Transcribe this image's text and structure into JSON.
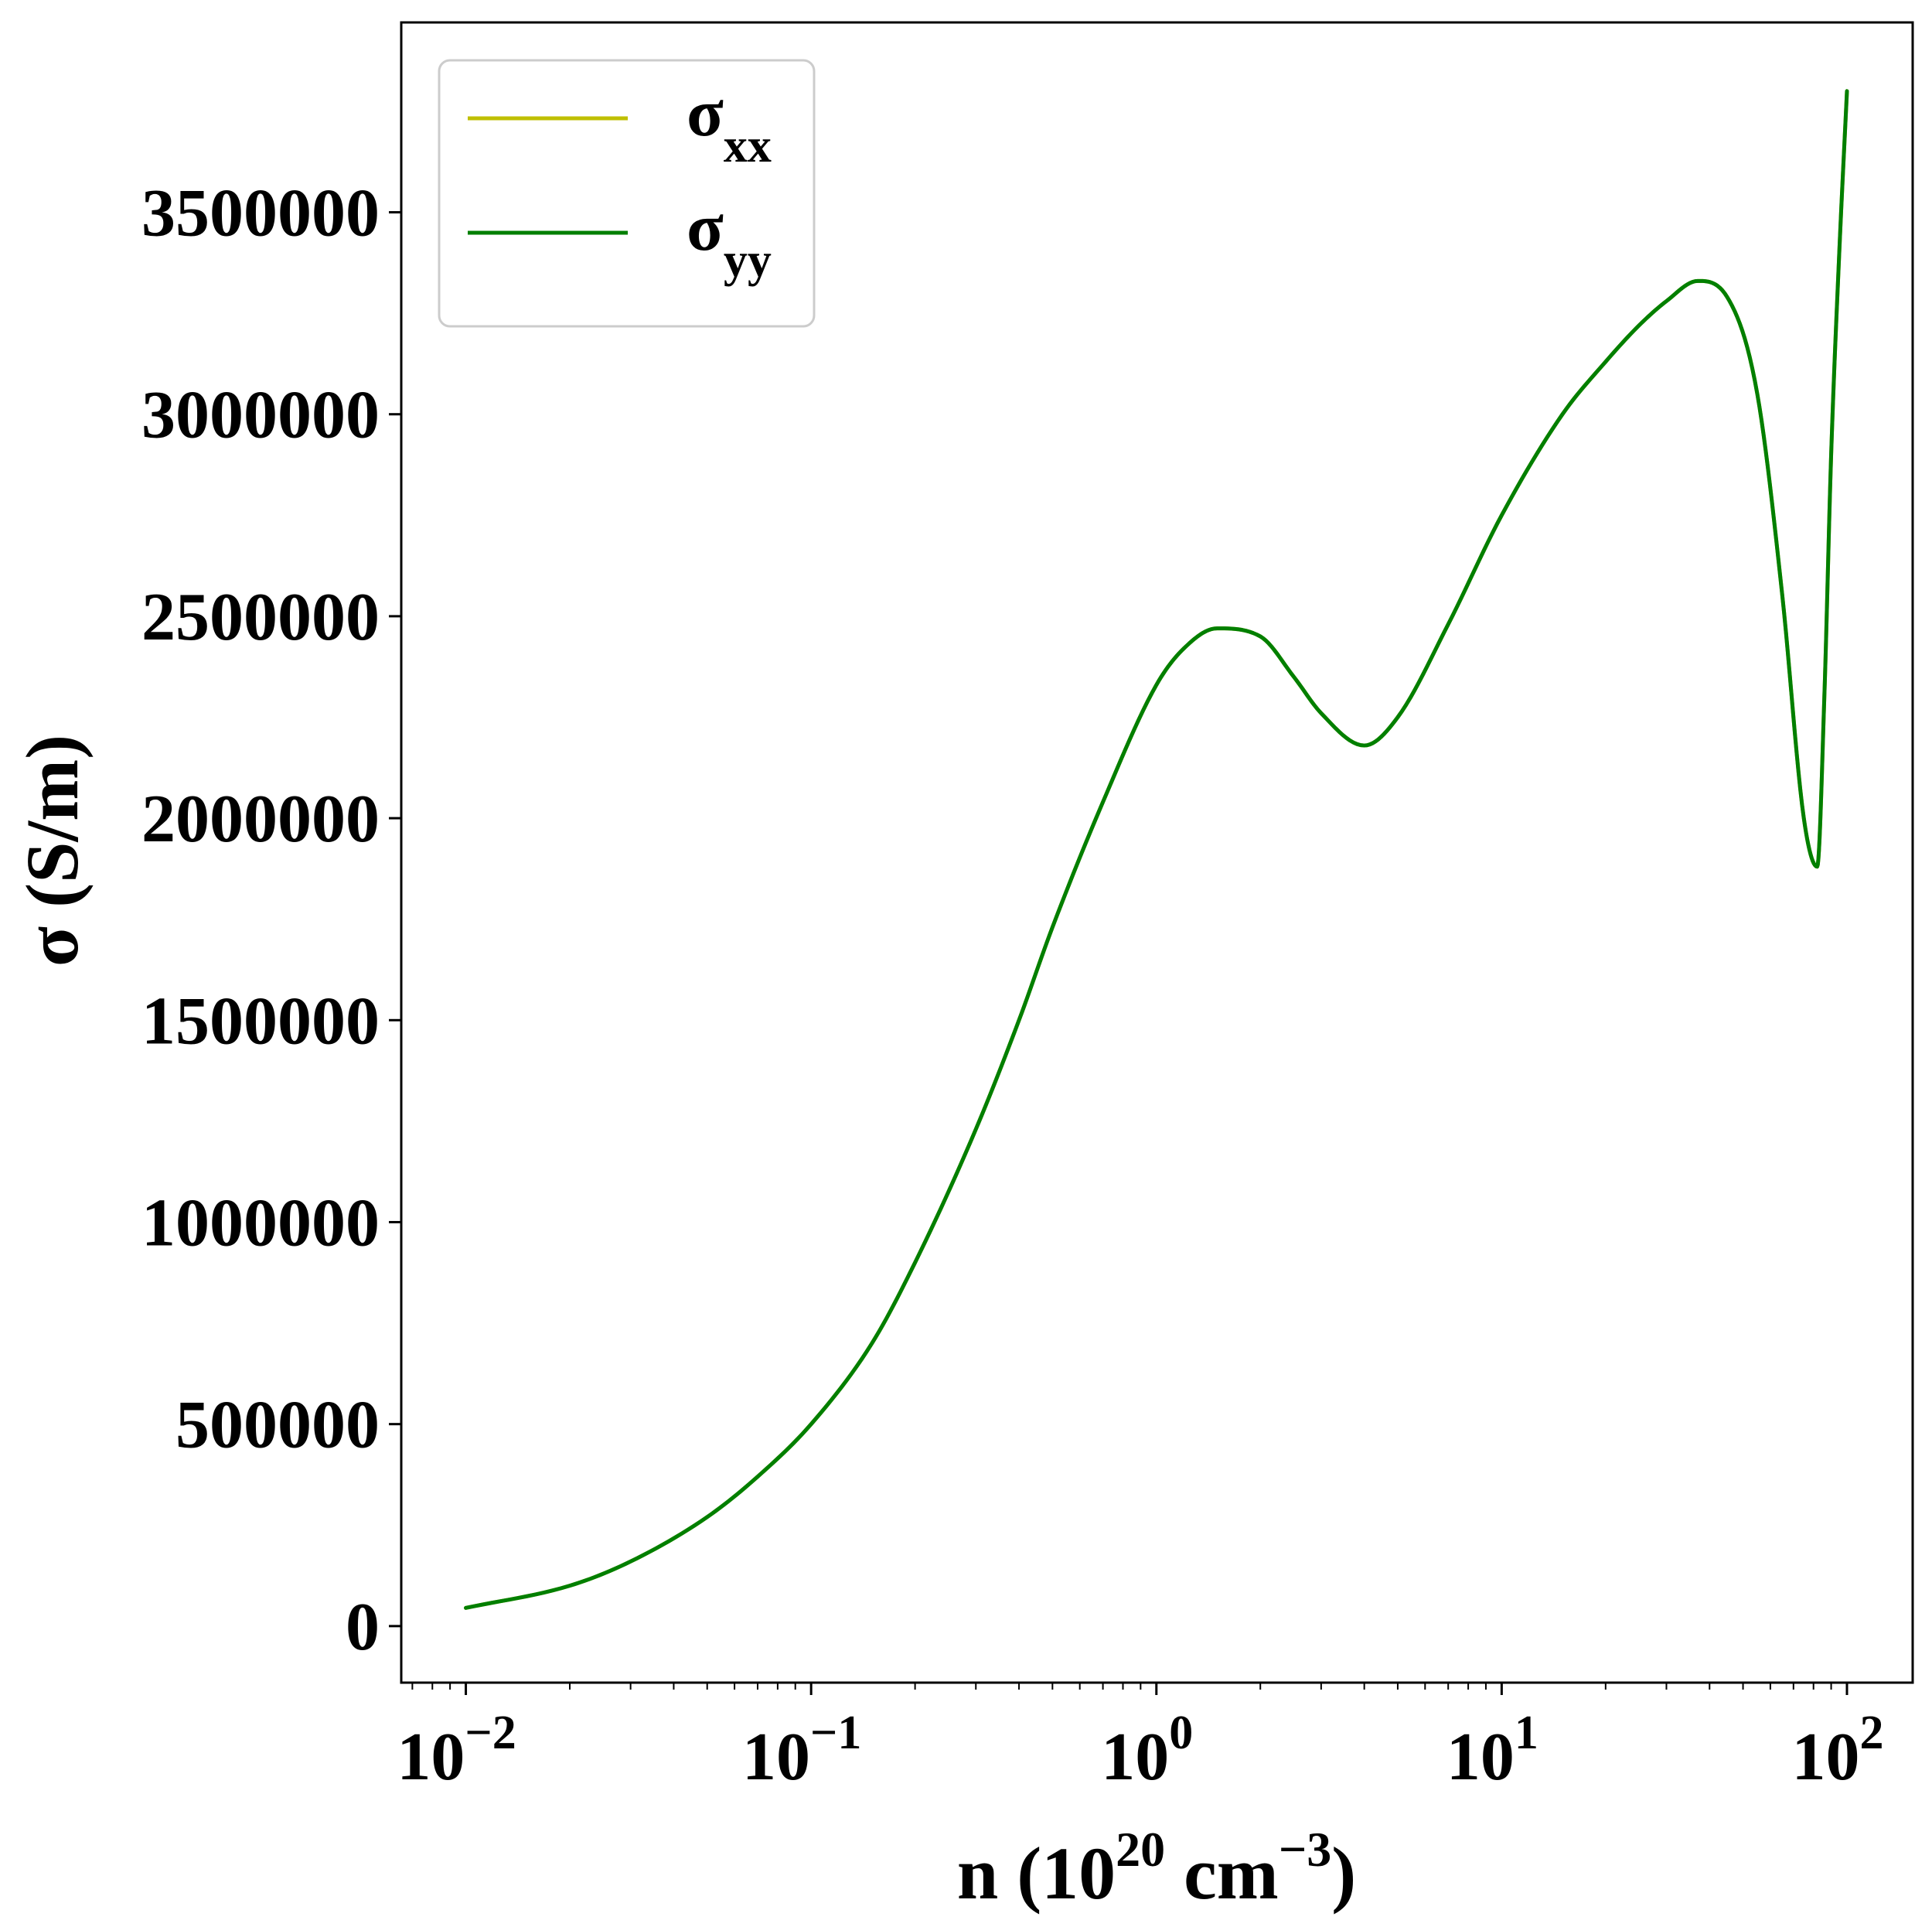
{
  "chart_data": {
    "type": "line",
    "title": "",
    "xlabel": "n (10^20 cm^-3)",
    "xlabel_parts": {
      "prefix": "n (10",
      "exp1": "20",
      "mid": " cm",
      "exp2": "−3",
      "suffix": ")"
    },
    "ylabel": "σ (S/m)",
    "x_scale": "log",
    "xlim": [
      0.0065,
      155
    ],
    "ylim": [
      -140000,
      3970000
    ],
    "grid": false,
    "legend_placement": "top-left",
    "x_ticks": [
      {
        "value": 0.01,
        "base": "10",
        "exp": "−2"
      },
      {
        "value": 0.1,
        "base": "10",
        "exp": "−1"
      },
      {
        "value": 1,
        "base": "10",
        "exp": "0"
      },
      {
        "value": 10,
        "base": "10",
        "exp": "1"
      },
      {
        "value": 100,
        "base": "10",
        "exp": "2"
      }
    ],
    "y_ticks": [
      {
        "value": 0,
        "label": "0"
      },
      {
        "value": 500000,
        "label": "500000"
      },
      {
        "value": 1000000,
        "label": "1000000"
      },
      {
        "value": 1500000,
        "label": "1500000"
      },
      {
        "value": 2000000,
        "label": "2000000"
      },
      {
        "value": 2500000,
        "label": "2500000"
      },
      {
        "value": 3000000,
        "label": "3000000"
      },
      {
        "value": 3500000,
        "label": "3500000"
      }
    ],
    "series": [
      {
        "name": "σxx",
        "label_base": "σ",
        "label_sub": "xx",
        "color": "#bfbf00",
        "x": [
          0.01,
          0.02,
          0.03,
          0.05,
          0.07,
          0.1,
          0.15,
          0.2,
          0.3,
          0.4,
          0.5,
          0.7,
          1.0,
          1.2,
          1.5,
          2.0,
          2.5,
          3.0,
          4.0,
          5.0,
          7.0,
          10,
          15,
          20,
          25,
          30,
          37,
          45,
          55,
          65,
          75,
          82,
          86,
          90,
          95,
          100
        ],
        "y": [
          45000,
          100000,
          160000,
          270000,
          370000,
          500000,
          700000,
          900000,
          1230000,
          1500000,
          1730000,
          2040000,
          2330000,
          2420000,
          2470000,
          2450000,
          2350000,
          2260000,
          2180000,
          2250000,
          2480000,
          2750000,
          3000000,
          3130000,
          3220000,
          3280000,
          3330000,
          3290000,
          3050000,
          2550000,
          2000000,
          1880000,
          2300000,
          2900000,
          3400000,
          3800000
        ]
      },
      {
        "name": "σyy",
        "label_base": "σ",
        "label_sub": "yy",
        "color": "#007f00",
        "x": [
          0.01,
          0.02,
          0.03,
          0.05,
          0.07,
          0.1,
          0.15,
          0.2,
          0.3,
          0.4,
          0.5,
          0.7,
          1.0,
          1.2,
          1.5,
          2.0,
          2.5,
          3.0,
          4.0,
          5.0,
          7.0,
          10,
          15,
          20,
          25,
          30,
          37,
          45,
          55,
          65,
          75,
          82,
          86,
          90,
          95,
          100
        ],
        "y": [
          45000,
          100000,
          160000,
          270000,
          370000,
          500000,
          700000,
          900000,
          1230000,
          1500000,
          1730000,
          2040000,
          2330000,
          2420000,
          2470000,
          2450000,
          2350000,
          2260000,
          2180000,
          2250000,
          2480000,
          2750000,
          3000000,
          3130000,
          3220000,
          3280000,
          3330000,
          3290000,
          3050000,
          2550000,
          2000000,
          1880000,
          2300000,
          2900000,
          3400000,
          3800000
        ]
      }
    ]
  }
}
